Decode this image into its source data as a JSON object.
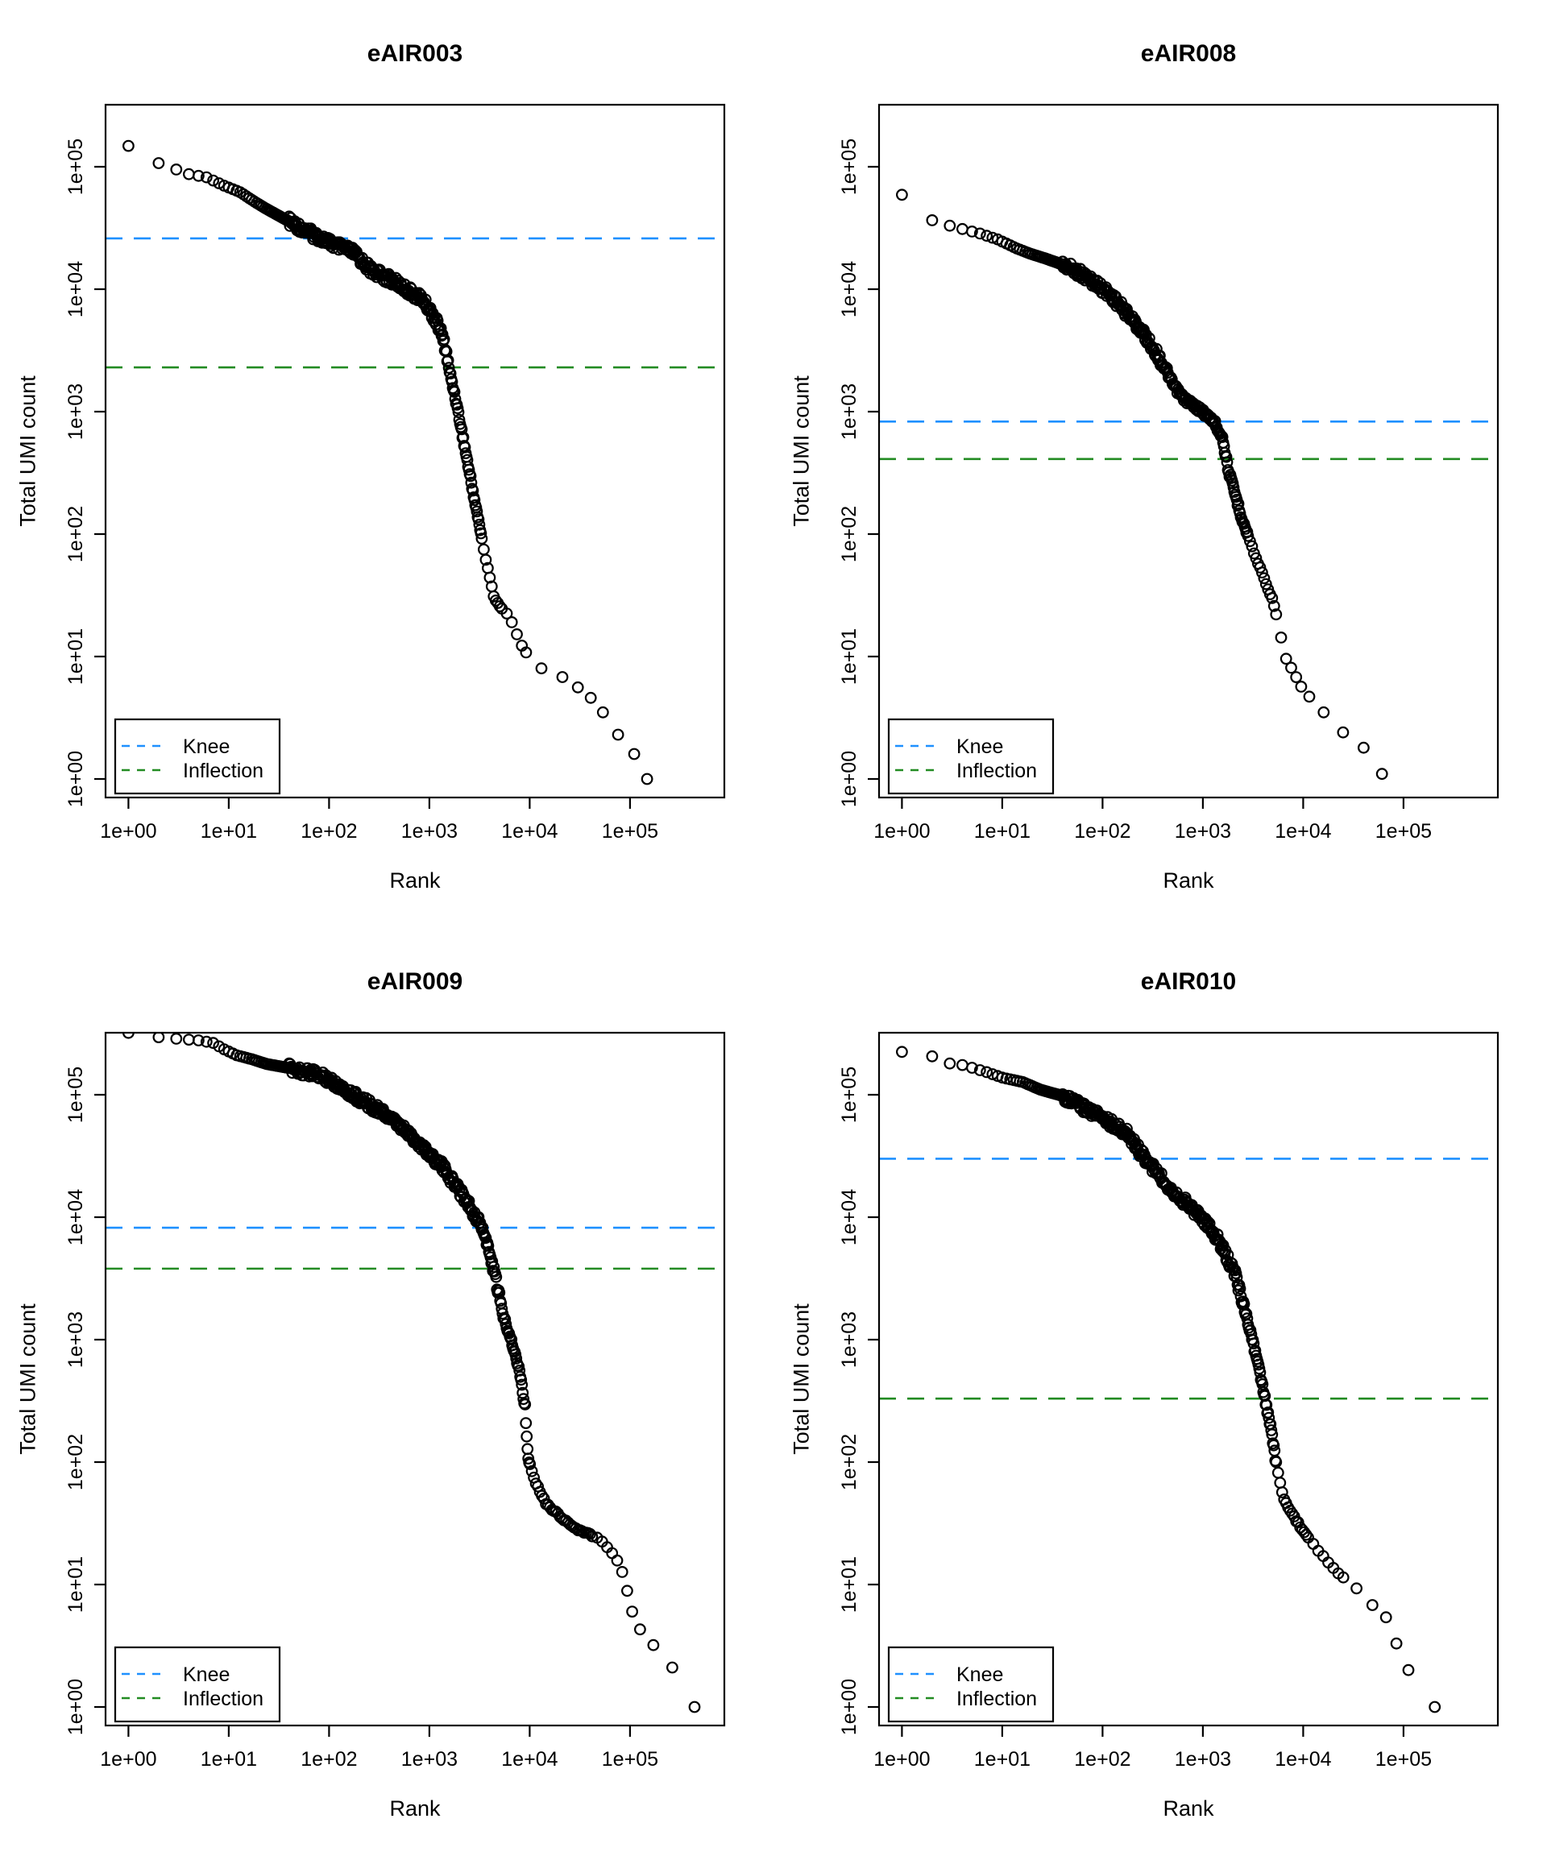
{
  "figure": {
    "background": "#ffffff",
    "point_color": "#000000",
    "knee_color": "#1E90FF",
    "inflection_color": "#228B22"
  },
  "axes": {
    "x_label": "Rank",
    "y_label": "Total UMI count",
    "scale": "log10",
    "x_tick_labels": [
      "1e+00",
      "1e+01",
      "1e+02",
      "1e+03",
      "1e+04",
      "1e+05"
    ],
    "y_tick_labels": [
      "1e+00",
      "1e+01",
      "1e+02",
      "1e+03",
      "1e+04",
      "1e+05"
    ]
  },
  "legend": {
    "items": [
      {
        "label": "Knee",
        "color": "#1E90FF"
      },
      {
        "label": "Inflection",
        "color": "#228B22"
      }
    ]
  },
  "chart_data": [
    {
      "type": "scatter",
      "title": "eAIR003",
      "xlabel": "Rank",
      "ylabel": "Total UMI count",
      "xlim": [
        0.58,
        870000
      ],
      "ylim": [
        0.71,
        320000
      ],
      "grid": false,
      "legend_position": "bottomleft",
      "knee": 26000,
      "inflection": 2300,
      "sparse_from": 9000,
      "points": [
        [
          1,
          148000
        ],
        [
          2,
          107000
        ],
        [
          3,
          95000
        ],
        [
          4,
          87000
        ],
        [
          6,
          82000
        ],
        [
          9,
          70000
        ],
        [
          13,
          62000
        ],
        [
          18,
          52000
        ],
        [
          23,
          46000
        ],
        [
          33,
          39000
        ],
        [
          48,
          33000
        ],
        [
          69,
          28000
        ],
        [
          81,
          26500
        ],
        [
          113,
          23000
        ],
        [
          174,
          20000
        ],
        [
          260,
          14400
        ],
        [
          450,
          11500
        ],
        [
          655,
          9400
        ],
        [
          835,
          8400
        ],
        [
          1070,
          6300
        ],
        [
          1290,
          4600
        ],
        [
          1460,
          3200
        ],
        [
          1550,
          2340
        ],
        [
          1820,
          1300
        ],
        [
          2115,
          675
        ],
        [
          2540,
          300
        ],
        [
          3060,
          134
        ],
        [
          3670,
          60
        ],
        [
          4400,
          31
        ],
        [
          5000,
          26
        ],
        [
          6350,
          21
        ],
        [
          7700,
          14
        ],
        [
          9200,
          10.8
        ],
        [
          13100,
          8
        ],
        [
          21200,
          6.8
        ],
        [
          30200,
          5.6
        ],
        [
          40600,
          4.6
        ],
        [
          53700,
          3.5
        ],
        [
          76000,
          2.3
        ],
        [
          110000,
          1.6
        ],
        [
          148000,
          1
        ]
      ]
    },
    {
      "type": "scatter",
      "title": "eAIR008",
      "xlabel": "Rank",
      "ylabel": "Total UMI count",
      "xlim": [
        0.58,
        870000
      ],
      "ylim": [
        0.71,
        320000
      ],
      "grid": false,
      "legend_position": "bottomleft",
      "knee": 830,
      "inflection": 410,
      "sparse_from": 10000,
      "points": [
        [
          1,
          59000
        ],
        [
          2,
          36600
        ],
        [
          3,
          33000
        ],
        [
          4,
          31000
        ],
        [
          6,
          28500
        ],
        [
          9,
          25500
        ],
        [
          14,
          21500
        ],
        [
          19,
          19500
        ],
        [
          27,
          17800
        ],
        [
          39,
          16000
        ],
        [
          56,
          14000
        ],
        [
          82,
          11400
        ],
        [
          120,
          9000
        ],
        [
          174,
          6400
        ],
        [
          238,
          4700
        ],
        [
          325,
          3250
        ],
        [
          420,
          2260
        ],
        [
          505,
          1660
        ],
        [
          610,
          1340
        ],
        [
          740,
          1180
        ],
        [
          950,
          1030
        ],
        [
          1180,
          885
        ],
        [
          1290,
          830
        ],
        [
          1560,
          620
        ],
        [
          1800,
          330
        ],
        [
          2450,
          134
        ],
        [
          3330,
          66
        ],
        [
          4260,
          40
        ],
        [
          5100,
          27
        ],
        [
          6600,
          10
        ],
        [
          8300,
          7
        ],
        [
          9600,
          5.6
        ],
        [
          11500,
          4.7
        ],
        [
          16000,
          3.5
        ],
        [
          25000,
          2.4
        ],
        [
          40000,
          1.8
        ],
        [
          61000,
          1.1
        ]
      ]
    },
    {
      "type": "scatter",
      "title": "eAIR009",
      "xlabel": "Rank",
      "ylabel": "Total UMI count",
      "xlim": [
        0.58,
        870000
      ],
      "ylim": [
        0.71,
        320000
      ],
      "grid": false,
      "legend_position": "bottomleft",
      "knee": 8200,
      "inflection": 3800,
      "sparse_from": 110000,
      "points": [
        [
          1,
          320000
        ],
        [
          2,
          295000
        ],
        [
          3,
          287000
        ],
        [
          5,
          278000
        ],
        [
          7,
          265000
        ],
        [
          9,
          235000
        ],
        [
          12,
          210000
        ],
        [
          17,
          195000
        ],
        [
          24,
          178000
        ],
        [
          46,
          162000
        ],
        [
          90,
          140000
        ],
        [
          177,
          99000
        ],
        [
          345,
          71000
        ],
        [
          670,
          45600
        ],
        [
          1320,
          26300
        ],
        [
          2250,
          14400
        ],
        [
          3380,
          8200
        ],
        [
          4360,
          3800
        ],
        [
          5400,
          1610
        ],
        [
          6600,
          980
        ],
        [
          8100,
          505
        ],
        [
          9000,
          280
        ],
        [
          9600,
          110
        ],
        [
          11500,
          68
        ],
        [
          14800,
          45
        ],
        [
          27700,
          29
        ],
        [
          52000,
          23
        ],
        [
          71000,
          17
        ],
        [
          86000,
          12
        ],
        [
          94000,
          8.7
        ],
        [
          100000,
          6.6
        ],
        [
          126000,
          4.3
        ],
        [
          171000,
          3.2
        ],
        [
          264000,
          2.1
        ],
        [
          440000,
          1
        ]
      ]
    },
    {
      "type": "scatter",
      "title": "eAIR010",
      "xlabel": "Rank",
      "ylabel": "Total UMI count",
      "xlim": [
        0.58,
        870000
      ],
      "ylim": [
        0.71,
        320000
      ],
      "grid": false,
      "legend_position": "bottomleft",
      "knee": 30000,
      "inflection": 330,
      "sparse_from": 26000,
      "points": [
        [
          1,
          224000
        ],
        [
          2,
          206000
        ],
        [
          3,
          180000
        ],
        [
          4,
          175000
        ],
        [
          5,
          166000
        ],
        [
          7,
          153000
        ],
        [
          10,
          138000
        ],
        [
          16,
          127000
        ],
        [
          24,
          110000
        ],
        [
          38,
          99000
        ],
        [
          64,
          79000
        ],
        [
          110,
          62000
        ],
        [
          177,
          48000
        ],
        [
          265,
          30000
        ],
        [
          480,
          17000
        ],
        [
          940,
          10300
        ],
        [
          1410,
          6600
        ],
        [
          2110,
          3400
        ],
        [
          2760,
          1500
        ],
        [
          3500,
          660
        ],
        [
          4150,
          330
        ],
        [
          4700,
          200
        ],
        [
          5400,
          95
        ],
        [
          6350,
          50
        ],
        [
          10000,
          27
        ],
        [
          16800,
          16
        ],
        [
          23000,
          12
        ],
        [
          34000,
          9.3
        ],
        [
          49000,
          6.8
        ],
        [
          67000,
          5.4
        ],
        [
          85000,
          3.3
        ],
        [
          112000,
          2
        ],
        [
          205000,
          1
        ]
      ]
    }
  ]
}
